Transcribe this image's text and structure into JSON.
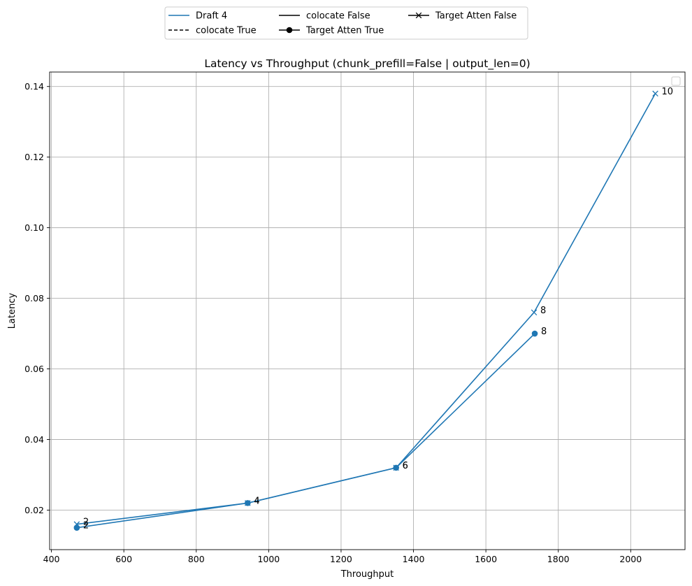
{
  "chart_data": {
    "type": "line",
    "title": "Latency vs Throughput (chunk_prefill=False | output_len=0)",
    "xlabel": "Throughput",
    "ylabel": "Latency",
    "xlim": [
      395,
      2150
    ],
    "ylim": [
      0.0088,
      0.1441
    ],
    "xticks": [
      400,
      600,
      800,
      1000,
      1200,
      1400,
      1600,
      1800,
      2000
    ],
    "yticks": [
      0.02,
      0.04,
      0.06,
      0.08,
      0.1,
      0.12,
      0.14
    ],
    "ytick_labels": [
      "0.02",
      "0.04",
      "0.06",
      "0.08",
      "0.10",
      "0.12",
      "0.14"
    ],
    "grid": true,
    "series_color": "#1f77b4",
    "series": [
      {
        "name": "Draft 4",
        "colocate": "True",
        "target_atten": "True",
        "marker": "circle",
        "points": [
          {
            "x": 470,
            "y": 0.015,
            "label": "2"
          },
          {
            "x": 942,
            "y": 0.022,
            "label": "4"
          },
          {
            "x": 1352,
            "y": 0.032,
            "label": "6"
          },
          {
            "x": 1735,
            "y": 0.07,
            "label": "8"
          }
        ]
      },
      {
        "name": "Draft 4",
        "colocate": "True",
        "target_atten": "False",
        "marker": "x",
        "points": [
          {
            "x": 470,
            "y": 0.016,
            "label": "2"
          },
          {
            "x": 942,
            "y": 0.022,
            "label": "4"
          },
          {
            "x": 1352,
            "y": 0.032,
            "label": "6"
          },
          {
            "x": 1733,
            "y": 0.076,
            "label": "8"
          },
          {
            "x": 2068,
            "y": 0.138,
            "label": "10"
          }
        ]
      }
    ],
    "legend": {
      "placement": "top-center outside",
      "entries": [
        {
          "label": "Draft 4",
          "style": "solid",
          "marker": "none",
          "color": "#1f77b4"
        },
        {
          "label": "colocate True",
          "style": "dashed",
          "marker": "none",
          "color": "#000000"
        },
        {
          "label": "colocate False",
          "style": "solid",
          "marker": "none",
          "color": "#000000"
        },
        {
          "label": "Target Atten True",
          "style": "solid",
          "marker": "circle",
          "color": "#000000"
        },
        {
          "label": "Target Atten False",
          "style": "solid",
          "marker": "x",
          "color": "#000000"
        }
      ]
    },
    "empty_legend_placement": "top-right inside"
  }
}
